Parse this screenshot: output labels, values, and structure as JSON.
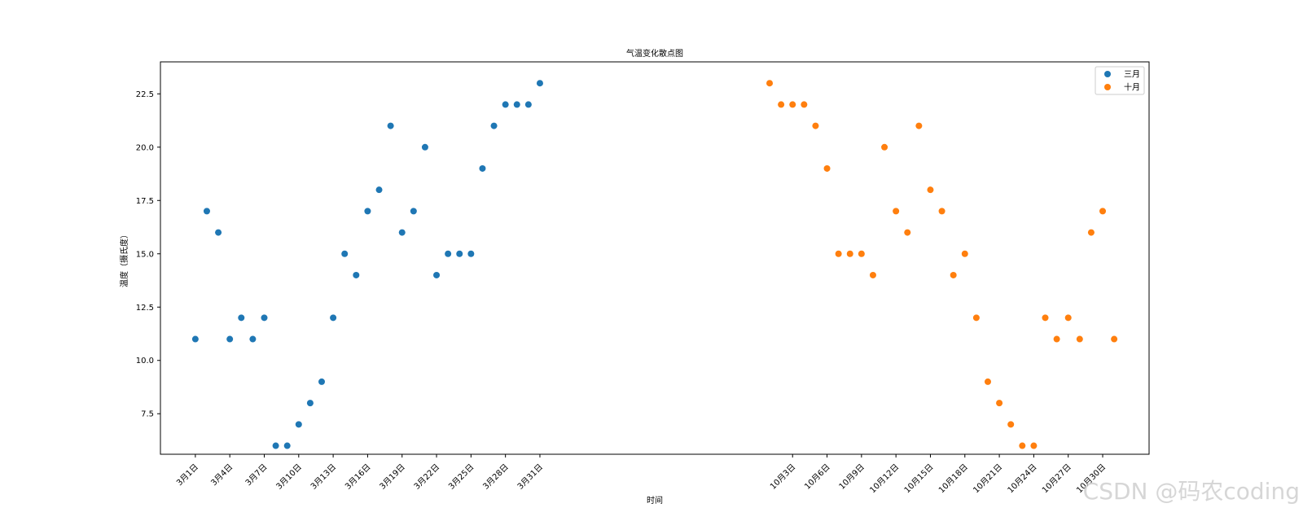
{
  "chart_data": {
    "type": "scatter",
    "title": "气温变化散点图",
    "xlabel": "时间",
    "ylabel": "温度（摄氏度）",
    "ylim": [
      5.6,
      24.0
    ],
    "yticks": [
      7.5,
      10.0,
      12.5,
      15.0,
      17.5,
      20.0,
      22.5
    ],
    "grid": false,
    "legend": "upper right",
    "x_tick_rotation": 45,
    "series": [
      {
        "name": "三月",
        "color": "#1f77b4",
        "x": [
          1,
          2,
          3,
          4,
          5,
          6,
          7,
          8,
          9,
          10,
          11,
          12,
          13,
          14,
          15,
          16,
          17,
          18,
          19,
          20,
          21,
          22,
          23,
          24,
          25,
          26,
          27,
          28,
          29,
          30,
          31
        ],
        "values": [
          11,
          17,
          16,
          11,
          12,
          11,
          12,
          6,
          6,
          7,
          8,
          9,
          12,
          15,
          14,
          17,
          18,
          21,
          16,
          17,
          20,
          14,
          15,
          15,
          15,
          19,
          21,
          22,
          22,
          22,
          23
        ]
      },
      {
        "name": "十月",
        "color": "#ff7f0e",
        "x": [
          51,
          52,
          53,
          54,
          55,
          56,
          57,
          58,
          59,
          60,
          61,
          62,
          63,
          64,
          65,
          66,
          67,
          68,
          69,
          70,
          71,
          72,
          73,
          74,
          75,
          76,
          77,
          78,
          79,
          80,
          81
        ],
        "values": [
          23,
          22,
          22,
          22,
          21,
          19,
          15,
          15,
          15,
          14,
          20,
          17,
          16,
          21,
          18,
          17,
          14,
          15,
          12,
          9,
          8,
          7,
          6,
          6,
          12,
          11,
          12,
          11,
          16,
          17,
          11
        ]
      }
    ],
    "x_ticks": [
      {
        "x": 1,
        "label": "3月1日"
      },
      {
        "x": 4,
        "label": "3月4日"
      },
      {
        "x": 7,
        "label": "3月7日"
      },
      {
        "x": 10,
        "label": "3月10日"
      },
      {
        "x": 13,
        "label": "3月13日"
      },
      {
        "x": 16,
        "label": "3月16日"
      },
      {
        "x": 19,
        "label": "3月19日"
      },
      {
        "x": 22,
        "label": "3月22日"
      },
      {
        "x": 25,
        "label": "3月25日"
      },
      {
        "x": 28,
        "label": "3月28日"
      },
      {
        "x": 31,
        "label": "3月31日"
      },
      {
        "x": 53,
        "label": "10月3日"
      },
      {
        "x": 56,
        "label": "10月6日"
      },
      {
        "x": 59,
        "label": "10月9日"
      },
      {
        "x": 62,
        "label": "10月12日"
      },
      {
        "x": 65,
        "label": "10月15日"
      },
      {
        "x": 68,
        "label": "10月18日"
      },
      {
        "x": 71,
        "label": "10月21日"
      },
      {
        "x": 74,
        "label": "10月24日"
      },
      {
        "x": 77,
        "label": "10月27日"
      },
      {
        "x": 80,
        "label": "10月30日"
      }
    ]
  },
  "watermark": "CSDN @码农coding"
}
